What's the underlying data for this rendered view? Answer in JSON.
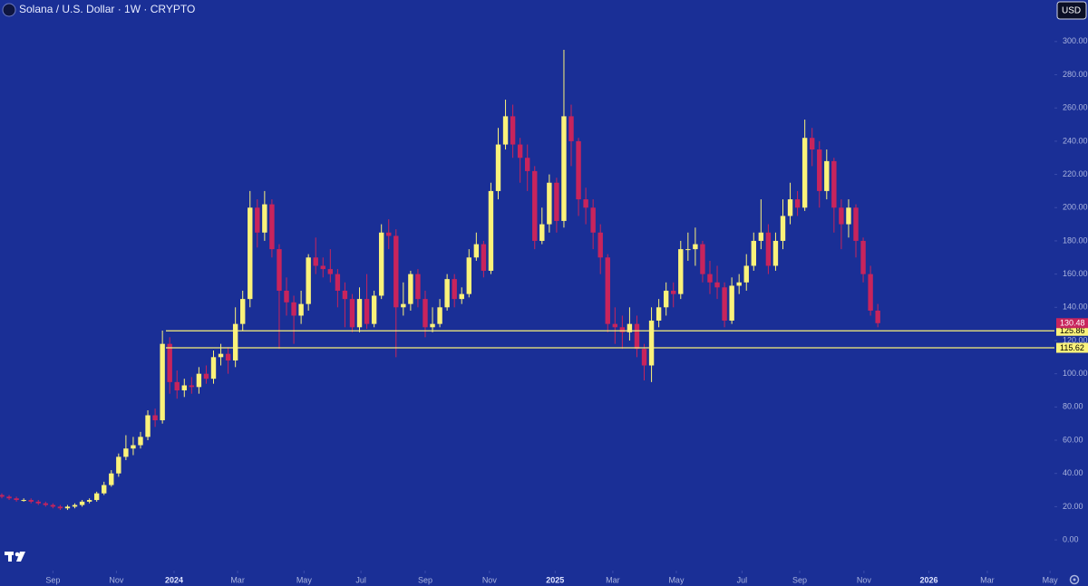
{
  "chart_data": {
    "type": "candlestick",
    "title": "Solana / U.S. Dollar · 1W · CRYPTO",
    "currency": "USD",
    "up_color": "#fbf27a",
    "down_color": "#c8245c",
    "level_color": "#fbf27a",
    "background": "#1a2f96",
    "candles": [
      [
        27,
        28,
        25,
        26
      ],
      [
        26,
        27,
        24,
        25
      ],
      [
        25,
        26,
        23,
        24
      ],
      [
        24,
        25,
        23,
        24
      ],
      [
        24,
        25,
        22,
        23
      ],
      [
        23,
        24,
        21,
        22
      ],
      [
        22,
        23,
        20,
        21
      ],
      [
        21,
        22,
        19,
        20
      ],
      [
        20,
        21,
        18,
        19
      ],
      [
        19,
        21,
        18,
        20
      ],
      [
        20,
        22,
        19,
        21
      ],
      [
        21,
        24,
        20,
        23
      ],
      [
        23,
        25,
        22,
        24
      ],
      [
        24,
        29,
        23,
        28
      ],
      [
        28,
        35,
        27,
        33
      ],
      [
        33,
        42,
        32,
        40
      ],
      [
        40,
        52,
        38,
        50
      ],
      [
        50,
        63,
        48,
        55
      ],
      [
        55,
        62,
        51,
        57
      ],
      [
        57,
        65,
        55,
        62
      ],
      [
        62,
        78,
        60,
        75
      ],
      [
        75,
        79,
        68,
        72
      ],
      [
        72,
        126,
        70,
        118
      ],
      [
        118,
        122,
        88,
        95
      ],
      [
        95,
        102,
        85,
        90
      ],
      [
        90,
        97,
        86,
        93
      ],
      [
        93,
        98,
        88,
        92
      ],
      [
        92,
        104,
        88,
        100
      ],
      [
        100,
        105,
        94,
        97
      ],
      [
        97,
        114,
        94,
        110
      ],
      [
        110,
        118,
        105,
        112
      ],
      [
        112,
        116,
        100,
        108
      ],
      [
        108,
        140,
        104,
        130
      ],
      [
        130,
        150,
        126,
        145
      ],
      [
        145,
        210,
        140,
        200
      ],
      [
        200,
        205,
        176,
        185
      ],
      [
        185,
        210,
        180,
        202
      ],
      [
        202,
        205,
        170,
        175
      ],
      [
        175,
        178,
        115,
        150
      ],
      [
        150,
        158,
        135,
        143
      ],
      [
        143,
        147,
        118,
        135
      ],
      [
        135,
        150,
        130,
        142
      ],
      [
        142,
        172,
        138,
        170
      ],
      [
        170,
        182,
        160,
        165
      ],
      [
        165,
        170,
        158,
        163
      ],
      [
        163,
        175,
        155,
        160
      ],
      [
        160,
        163,
        140,
        150
      ],
      [
        150,
        155,
        128,
        145
      ],
      [
        145,
        148,
        125,
        128
      ],
      [
        128,
        152,
        125,
        145
      ],
      [
        145,
        160,
        127,
        130
      ],
      [
        130,
        150,
        128,
        147
      ],
      [
        147,
        190,
        145,
        185
      ],
      [
        185,
        193,
        175,
        183
      ],
      [
        183,
        187,
        110,
        140
      ],
      [
        140,
        155,
        135,
        142
      ],
      [
        142,
        162,
        138,
        160
      ],
      [
        160,
        163,
        140,
        145
      ],
      [
        145,
        150,
        122,
        128
      ],
      [
        128,
        140,
        125,
        130
      ],
      [
        130,
        145,
        128,
        140
      ],
      [
        140,
        160,
        138,
        157
      ],
      [
        157,
        160,
        140,
        145
      ],
      [
        145,
        152,
        142,
        148
      ],
      [
        148,
        175,
        146,
        170
      ],
      [
        170,
        185,
        168,
        178
      ],
      [
        178,
        180,
        158,
        162
      ],
      [
        162,
        215,
        160,
        210
      ],
      [
        210,
        248,
        205,
        238
      ],
      [
        238,
        265,
        235,
        255
      ],
      [
        255,
        262,
        230,
        238
      ],
      [
        238,
        242,
        215,
        230
      ],
      [
        230,
        238,
        210,
        222
      ],
      [
        222,
        225,
        175,
        180
      ],
      [
        180,
        200,
        178,
        190
      ],
      [
        190,
        220,
        185,
        215
      ],
      [
        215,
        218,
        185,
        192
      ],
      [
        192,
        295,
        188,
        255
      ],
      [
        255,
        262,
        225,
        240
      ],
      [
        240,
        242,
        195,
        205
      ],
      [
        205,
        212,
        190,
        200
      ],
      [
        200,
        205,
        175,
        185
      ],
      [
        185,
        190,
        160,
        170
      ],
      [
        170,
        172,
        125,
        130
      ],
      [
        130,
        140,
        118,
        128
      ],
      [
        128,
        135,
        115,
        125
      ],
      [
        125,
        140,
        120,
        130
      ],
      [
        130,
        135,
        110,
        115
      ],
      [
        115,
        118,
        96,
        105
      ],
      [
        105,
        140,
        95,
        132
      ],
      [
        132,
        145,
        128,
        140
      ],
      [
        140,
        155,
        135,
        150
      ],
      [
        150,
        155,
        140,
        148
      ],
      [
        148,
        180,
        145,
        175
      ],
      [
        175,
        185,
        168,
        175
      ],
      [
        175,
        188,
        165,
        178
      ],
      [
        178,
        180,
        155,
        160
      ],
      [
        160,
        168,
        148,
        155
      ],
      [
        155,
        165,
        145,
        152
      ],
      [
        152,
        155,
        128,
        132
      ],
      [
        132,
        158,
        130,
        153
      ],
      [
        153,
        160,
        148,
        155
      ],
      [
        155,
        172,
        150,
        165
      ],
      [
        165,
        185,
        162,
        180
      ],
      [
        180,
        205,
        175,
        185
      ],
      [
        185,
        190,
        160,
        165
      ],
      [
        165,
        185,
        162,
        180
      ],
      [
        180,
        205,
        175,
        195
      ],
      [
        195,
        215,
        190,
        205
      ],
      [
        205,
        210,
        195,
        200
      ],
      [
        200,
        253,
        198,
        242
      ],
      [
        242,
        248,
        225,
        235
      ],
      [
        235,
        240,
        200,
        210
      ],
      [
        210,
        235,
        205,
        228
      ],
      [
        228,
        230,
        185,
        200
      ],
      [
        200,
        205,
        175,
        190
      ],
      [
        190,
        205,
        182,
        200
      ],
      [
        200,
        202,
        170,
        180
      ],
      [
        180,
        182,
        155,
        160
      ],
      [
        160,
        165,
        135,
        138
      ],
      [
        138,
        142,
        128,
        130.48
      ]
    ],
    "levels": [
      {
        "value": 125.86,
        "label": "125.86"
      },
      {
        "value": 115.62,
        "label": "115.62"
      }
    ],
    "xlim": [
      -0.25,
      144.2
    ],
    "xticks": [
      {
        "value": 7.0,
        "label": "Sep"
      },
      {
        "value": 15.7,
        "label": "Nov"
      },
      {
        "value": 23.6,
        "label": "2024"
      },
      {
        "value": 32.3,
        "label": "Mar"
      },
      {
        "value": 41.4,
        "label": "May"
      },
      {
        "value": 49.2,
        "label": "Jul"
      },
      {
        "value": 58,
        "label": "Sep"
      },
      {
        "value": 66.8,
        "label": "Nov"
      },
      {
        "value": 75.8,
        "label": "2025"
      },
      {
        "value": 83.7,
        "label": "Mar"
      },
      {
        "value": 92.4,
        "label": "May"
      },
      {
        "value": 101.4,
        "label": "Jul"
      },
      {
        "value": 109.3,
        "label": "Sep"
      },
      {
        "value": 118.1,
        "label": "Nov"
      },
      {
        "value": 127,
        "label": "2026"
      },
      {
        "value": 135,
        "label": "Mar"
      },
      {
        "value": 143.6,
        "label": "May"
      }
    ],
    "ylim": [
      -18.5,
      325
    ],
    "yticks": [
      {
        "value": 0,
        "label": "0.00"
      },
      {
        "value": 20,
        "label": "20.00"
      },
      {
        "value": 40,
        "label": "40.00"
      },
      {
        "value": 60,
        "label": "60.00"
      },
      {
        "value": 80,
        "label": "80.00"
      },
      {
        "value": 100,
        "label": "100.00"
      },
      {
        "value": 120,
        "label": "120.00"
      },
      {
        "value": 140,
        "label": "140.00"
      },
      {
        "value": 160,
        "label": "160.00"
      },
      {
        "value": 180,
        "label": "180.00"
      },
      {
        "value": 200,
        "label": "200.00"
      },
      {
        "value": 220,
        "label": "220.00"
      },
      {
        "value": 240,
        "label": "240.00"
      },
      {
        "value": 260,
        "label": "260.00"
      },
      {
        "value": 280,
        "label": "280.00"
      },
      {
        "value": 300,
        "label": "300.00"
      }
    ],
    "grid": false
  }
}
